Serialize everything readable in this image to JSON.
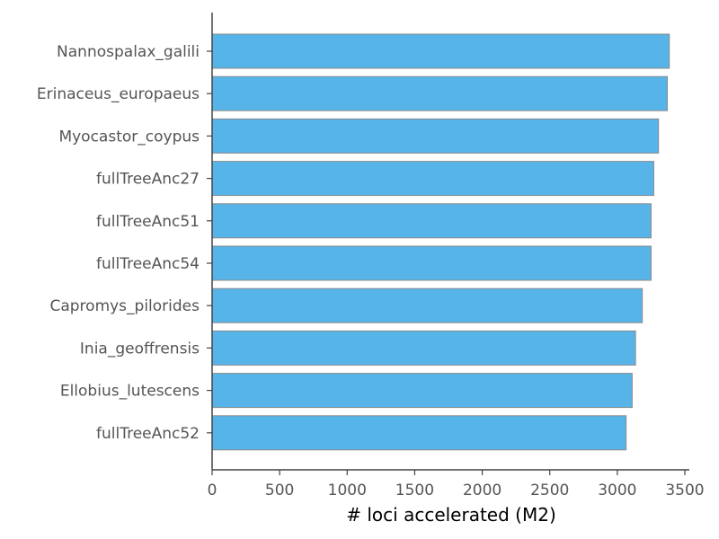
{
  "chart_data": {
    "type": "bar",
    "orientation": "horizontal",
    "categories": [
      "Nannospalax_galili",
      "Erinaceus_europaeus",
      "Myocastor_coypus",
      "fullTreeAnc27",
      "fullTreeAnc51",
      "fullTreeAnc54",
      "Capromys_pilorides",
      "Inia_geoffrensis",
      "Ellobius_lutescens",
      "fullTreeAnc52"
    ],
    "values": [
      3385,
      3370,
      3305,
      3270,
      3250,
      3250,
      3185,
      3135,
      3110,
      3065
    ],
    "xlabel": "# loci accelerated (M2)",
    "ylabel": "",
    "xlim": [
      0,
      3500
    ],
    "xticks": [
      0,
      500,
      1000,
      1500,
      2000,
      2500,
      3000,
      3500
    ],
    "grid": false,
    "legend": "none",
    "colors": {
      "bar_fill": "#56b4e9",
      "bar_edge": "#8a8a8a",
      "axis": "#444444",
      "text": "#555555"
    }
  }
}
